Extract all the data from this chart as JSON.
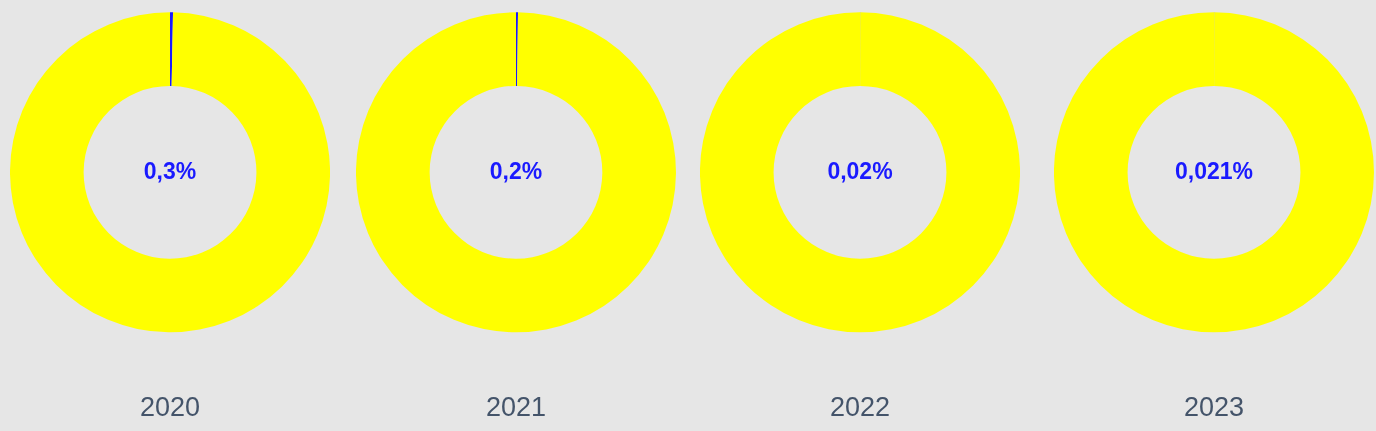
{
  "chart_data": [
    {
      "type": "donut",
      "title": "2020",
      "categories": [
        null,
        null
      ],
      "values": [
        0.3,
        99.7
      ],
      "colors": [
        "#1a1aff",
        "#ffff00"
      ],
      "value_labels": [
        "0,3%",
        null
      ]
    },
    {
      "type": "donut",
      "title": "2021",
      "categories": [
        null,
        null
      ],
      "values": [
        0.2,
        99.8
      ],
      "colors": [
        "#1a1aff",
        "#ffff00"
      ],
      "value_labels": [
        "0,2%",
        null
      ]
    },
    {
      "type": "donut",
      "title": "2022",
      "categories": [
        null,
        null
      ],
      "values": [
        0.02,
        99.98
      ],
      "colors": [
        "#1a1aff",
        "#ffff00"
      ],
      "value_labels": [
        "0,02%",
        null
      ]
    },
    {
      "type": "donut",
      "title": "2023",
      "categories": [
        null,
        null
      ],
      "values": [
        0.021,
        99.979
      ],
      "colors": [
        "#1a1aff",
        "#ffff00"
      ],
      "value_labels": [
        "0,021%",
        null
      ]
    }
  ]
}
